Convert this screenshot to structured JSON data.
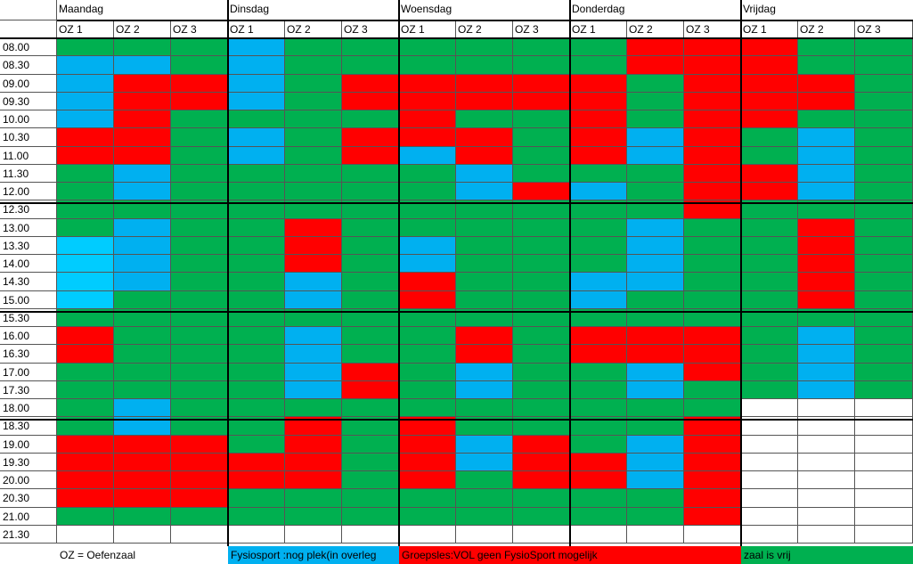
{
  "days": [
    "Maandag",
    "Dinsdag",
    "Woensdag",
    "Donderdag",
    "Vrijdag"
  ],
  "rooms": [
    "OZ 1",
    "OZ 2",
    "OZ 3"
  ],
  "times": [
    "08.00",
    "08.30",
    "09.00",
    "09.30",
    "10.00",
    "10.30",
    "11.00",
    "11.30",
    "12.00",
    "12.30",
    "13.00",
    "13.30",
    "14.00",
    "14.30",
    "15.00",
    "15.30",
    "16.00",
    "16.30",
    "17.00",
    "17.30",
    "18.00",
    "18.30",
    "19.00",
    "19.30",
    "20.00",
    "20.30",
    "21.00",
    "21.30"
  ],
  "colors": {
    "G": "#00b050",
    "R": "#ff0000",
    "B": "#00b0f0",
    "C": "#00ccff",
    "W": "#ffffff"
  },
  "grid": [
    "GGGBGGGGGGRRRGG",
    "BBGBGGGGGGRRRGG",
    "BRRBGRRRRRGRRRG",
    "BRRBGRRRRRGRRRG",
    "BRGGGGRGGRGRRGG",
    "RRGBGRRRGRBRGBG",
    "RRGBGRBRGRBRGBG",
    "GBGGGGGBGGGRRBG",
    "GBGGGGGBRBGRRBG",
    "GGGGGGGGGGGRGGG",
    "GBGGRGGGGGBGGRG",
    "CBGGRGBGGGBGGRG",
    "CBGGRGBGGGBGGRG",
    "CBGGBGRGGBBGGRG",
    "CGGGBGRGGBGGGRG",
    "GGGGGGGGGGGGGGG",
    "RGGGBGGRGRRRGBG",
    "RGGGBGGRGRRRGBG",
    "GGGGBRGBGGBRGBG",
    "GGGGBRGBGGBGGBG",
    "GBGGGGGGGGGGWWW",
    "GBGGRGRGGGGRWWW",
    "RRRGRGRBRGBRWWW",
    "RRRRRGRBRRBRWWW",
    "RRRRRGRGRRBRWWW",
    "RRRGGGGGGGGRWWW",
    "GGGGGGGGGGGRWWW",
    "WWWWWWWWWWWWWWW"
  ],
  "legend": {
    "oz": "OZ = Oefenzaal",
    "fysio": "Fysiosport :nog plek(in overleg",
    "groepsles": "Groepsles:VOL geen FysioSport mogelijk",
    "vrij": "zaal is vrij"
  }
}
